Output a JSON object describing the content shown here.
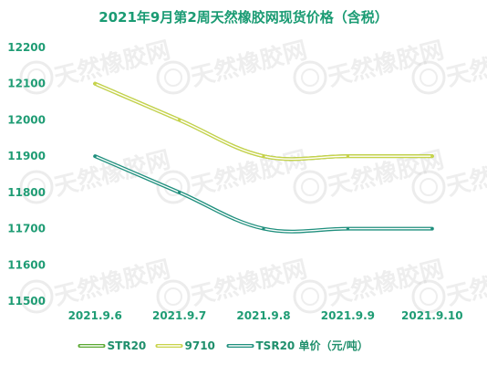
{
  "chart_data": {
    "type": "line",
    "title": "2021年9月第2周天然橡胶网现货价格（含税）",
    "categories": [
      "2021.9.6",
      "2021.9.7",
      "2021.9.8",
      "2021.9.9",
      "2021.9.10"
    ],
    "yticks": [
      11500,
      11600,
      11700,
      11800,
      11900,
      12000,
      12100,
      12200
    ],
    "ylim": [
      11500,
      12200
    ],
    "series": [
      {
        "name": "STR20",
        "values": [
          12100,
          12000,
          11900,
          11900,
          11900
        ],
        "color": "#5aa832"
      },
      {
        "name": "9710",
        "values": [
          12100,
          12000,
          11900,
          11900,
          11900
        ],
        "color": "#c8d34a"
      },
      {
        "name": "TSR20 单价（元/吨）",
        "values": [
          11900,
          11800,
          11700,
          11700,
          11700
        ],
        "color": "#1f8f7d"
      }
    ],
    "grid": false,
    "legend": "bottom"
  },
  "watermark": {
    "text": "天然橡胶网",
    "color": "#cfcfcf"
  }
}
